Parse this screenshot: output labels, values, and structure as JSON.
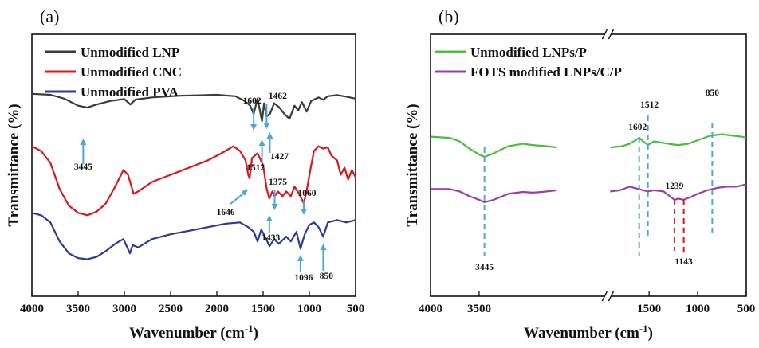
{
  "chart_data": [
    {
      "type": "line",
      "panel_label": "(a)",
      "xlabel": "Wavenumber (cm-1)",
      "ylabel": "Transmittance (%)",
      "xlim": [
        4000,
        500
      ],
      "x_reversed": true,
      "xticks": [
        4000,
        3500,
        3000,
        2500,
        2000,
        1500,
        1000,
        500
      ],
      "y_ticks_shown": false,
      "legend_position": "top-left",
      "series": [
        {
          "name": "Unmodified LNP",
          "color": "#3b3b3b",
          "offset": 0.8,
          "points": [
            [
              4000,
              0
            ],
            [
              3800,
              -0.004
            ],
            [
              3650,
              -0.02
            ],
            [
              3500,
              -0.05
            ],
            [
              3400,
              -0.058
            ],
            [
              3300,
              -0.045
            ],
            [
              3150,
              -0.03
            ],
            [
              3000,
              -0.022
            ],
            [
              2935,
              -0.045
            ],
            [
              2880,
              -0.024
            ],
            [
              2700,
              -0.015
            ],
            [
              2400,
              -0.008
            ],
            [
              2000,
              -0.004
            ],
            [
              1800,
              -0.01
            ],
            [
              1700,
              -0.03
            ],
            [
              1640,
              -0.05
            ],
            [
              1602,
              -0.085
            ],
            [
              1560,
              -0.02
            ],
            [
              1512,
              -0.115
            ],
            [
              1490,
              -0.04
            ],
            [
              1462,
              -0.095
            ],
            [
              1427,
              -0.085
            ],
            [
              1380,
              -0.04
            ],
            [
              1330,
              -0.055
            ],
            [
              1270,
              -0.085
            ],
            [
              1215,
              -0.105
            ],
            [
              1160,
              -0.05
            ],
            [
              1120,
              -0.07
            ],
            [
              1080,
              -0.035
            ],
            [
              1030,
              -0.075
            ],
            [
              980,
              -0.03
            ],
            [
              900,
              -0.015
            ],
            [
              850,
              -0.025
            ],
            [
              800,
              -0.01
            ],
            [
              700,
              -0.005
            ],
            [
              600,
              -0.012
            ],
            [
              500,
              -0.02
            ]
          ]
        },
        {
          "name": "Unmodified CNC",
          "color": "#d7191c",
          "offset": 0.58,
          "points": [
            [
              4000,
              0
            ],
            [
              3900,
              -0.02
            ],
            [
              3800,
              -0.07
            ],
            [
              3700,
              -0.18
            ],
            [
              3600,
              -0.25
            ],
            [
              3500,
              -0.28
            ],
            [
              3400,
              -0.29
            ],
            [
              3300,
              -0.275
            ],
            [
              3200,
              -0.24
            ],
            [
              3100,
              -0.17
            ],
            [
              3010,
              -0.1
            ],
            [
              2960,
              -0.12
            ],
            [
              2900,
              -0.2
            ],
            [
              2850,
              -0.19
            ],
            [
              2700,
              -0.15
            ],
            [
              2500,
              -0.12
            ],
            [
              2300,
              -0.09
            ],
            [
              2100,
              -0.06
            ],
            [
              1950,
              -0.03
            ],
            [
              1820,
              0.0
            ],
            [
              1750,
              -0.02
            ],
            [
              1690,
              -0.06
            ],
            [
              1660,
              -0.12
            ],
            [
              1646,
              -0.135
            ],
            [
              1620,
              -0.05
            ],
            [
              1560,
              -0.03
            ],
            [
              1500,
              -0.08
            ],
            [
              1460,
              -0.18
            ],
            [
              1433,
              -0.22
            ],
            [
              1400,
              -0.19
            ],
            [
              1375,
              -0.21
            ],
            [
              1340,
              -0.19
            ],
            [
              1290,
              -0.21
            ],
            [
              1250,
              -0.19
            ],
            [
              1200,
              -0.21
            ],
            [
              1160,
              -0.17
            ],
            [
              1110,
              -0.2
            ],
            [
              1060,
              -0.24
            ],
            [
              1030,
              -0.19
            ],
            [
              990,
              -0.1
            ],
            [
              950,
              -0.02
            ],
            [
              900,
              0.0
            ],
            [
              850,
              -0.01
            ],
            [
              800,
              -0.005
            ],
            [
              760,
              -0.04
            ],
            [
              700,
              -0.06
            ],
            [
              660,
              -0.12
            ],
            [
              620,
              -0.09
            ],
            [
              580,
              -0.14
            ],
            [
              540,
              -0.1
            ],
            [
              500,
              -0.13
            ]
          ]
        },
        {
          "name": "Unmodified PVA",
          "color": "#2b3a9b",
          "offset": 0.3,
          "points": [
            [
              4000,
              0
            ],
            [
              3900,
              -0.01
            ],
            [
              3800,
              -0.04
            ],
            [
              3700,
              -0.12
            ],
            [
              3600,
              -0.17
            ],
            [
              3500,
              -0.19
            ],
            [
              3400,
              -0.195
            ],
            [
              3300,
              -0.185
            ],
            [
              3200,
              -0.16
            ],
            [
              3100,
              -0.13
            ],
            [
              3010,
              -0.11
            ],
            [
              2940,
              -0.17
            ],
            [
              2910,
              -0.135
            ],
            [
              2850,
              -0.145
            ],
            [
              2700,
              -0.11
            ],
            [
              2500,
              -0.09
            ],
            [
              2300,
              -0.075
            ],
            [
              2100,
              -0.06
            ],
            [
              1900,
              -0.045
            ],
            [
              1750,
              -0.04
            ],
            [
              1660,
              -0.06
            ],
            [
              1600,
              -0.08
            ],
            [
              1560,
              -0.12
            ],
            [
              1520,
              -0.07
            ],
            [
              1480,
              -0.1
            ],
            [
              1430,
              -0.14
            ],
            [
              1380,
              -0.11
            ],
            [
              1330,
              -0.13
            ],
            [
              1250,
              -0.1
            ],
            [
              1200,
              -0.12
            ],
            [
              1140,
              -0.08
            ],
            [
              1096,
              -0.15
            ],
            [
              1050,
              -0.09
            ],
            [
              1000,
              -0.05
            ],
            [
              950,
              -0.04
            ],
            [
              900,
              -0.06
            ],
            [
              850,
              -0.1
            ],
            [
              800,
              -0.04
            ],
            [
              700,
              -0.03
            ],
            [
              600,
              -0.04
            ],
            [
              500,
              -0.03
            ]
          ]
        }
      ],
      "annotations": [
        {
          "label": "3445",
          "x": 3445,
          "arrow": "up"
        },
        {
          "label": "1602",
          "x": 1602,
          "arrow": "down"
        },
        {
          "label": "1462",
          "x": 1462,
          "arrow": "down"
        },
        {
          "label": "1427",
          "x": 1427,
          "arrow": "up"
        },
        {
          "label": "1512",
          "x": 1512,
          "arrow": "up"
        },
        {
          "label": "1646",
          "x": 1646,
          "arrow": "diag"
        },
        {
          "label": "1375",
          "x": 1375,
          "arrow": "down"
        },
        {
          "label": "1060",
          "x": 1060,
          "arrow": "down"
        },
        {
          "label": "1433",
          "x": 1433,
          "arrow": "up"
        },
        {
          "label": "1096",
          "x": 1096,
          "arrow": "up"
        },
        {
          "label": "850",
          "x": 850,
          "arrow": "up"
        }
      ]
    },
    {
      "type": "line",
      "panel_label": "(b)",
      "xlabel": "Wavenumber (cm-1)",
      "ylabel": "Transmittance (%)",
      "xlim": [
        4000,
        500
      ],
      "x_reversed": true,
      "axis_break": [
        2200,
        1900
      ],
      "xticks": [
        4000,
        3500,
        1500,
        1000,
        500
      ],
      "y_ticks_shown": false,
      "legend_position": "top-left",
      "series": [
        {
          "name": "Unmodified LNPs/P",
          "color": "#4cbb3f",
          "offset": 0.62,
          "points": [
            [
              4000,
              0
            ],
            [
              3800,
              -0.005
            ],
            [
              3700,
              -0.02
            ],
            [
              3600,
              -0.05
            ],
            [
              3500,
              -0.075
            ],
            [
              3445,
              -0.085
            ],
            [
              3350,
              -0.07
            ],
            [
              3200,
              -0.04
            ],
            [
              3050,
              -0.03
            ],
            [
              2950,
              -0.035
            ],
            [
              2800,
              -0.04
            ],
            [
              2700,
              -0.045
            ],
            [
              1900,
              -0.045
            ],
            [
              1780,
              -0.04
            ],
            [
              1700,
              -0.03
            ],
            [
              1640,
              -0.015
            ],
            [
              1602,
              -0.005
            ],
            [
              1560,
              -0.02
            ],
            [
              1512,
              -0.035
            ],
            [
              1450,
              -0.02
            ],
            [
              1300,
              -0.03
            ],
            [
              1200,
              -0.035
            ],
            [
              1100,
              -0.03
            ],
            [
              1000,
              -0.015
            ],
            [
              900,
              0.0
            ],
            [
              850,
              0.005
            ],
            [
              750,
              0.01
            ],
            [
              650,
              0.005
            ],
            [
              550,
              0.0
            ],
            [
              500,
              -0.005
            ]
          ]
        },
        {
          "name": "FOTS modified LNPs/C/P",
          "color": "#9b3fa8",
          "offset": 0.4,
          "points": [
            [
              4000,
              0
            ],
            [
              3800,
              0.0
            ],
            [
              3700,
              -0.01
            ],
            [
              3600,
              -0.03
            ],
            [
              3500,
              -0.045
            ],
            [
              3445,
              -0.055
            ],
            [
              3350,
              -0.045
            ],
            [
              3200,
              -0.02
            ],
            [
              3050,
              -0.012
            ],
            [
              2950,
              -0.015
            ],
            [
              2850,
              -0.012
            ],
            [
              2700,
              -0.005
            ],
            [
              1900,
              -0.01
            ],
            [
              1800,
              -0.005
            ],
            [
              1700,
              0.01
            ],
            [
              1650,
              0.005
            ],
            [
              1602,
              0.0
            ],
            [
              1560,
              -0.005
            ],
            [
              1512,
              -0.01
            ],
            [
              1450,
              -0.005
            ],
            [
              1350,
              -0.01
            ],
            [
              1239,
              -0.045
            ],
            [
              1200,
              -0.04
            ],
            [
              1143,
              -0.045
            ],
            [
              1080,
              -0.035
            ],
            [
              1000,
              -0.02
            ],
            [
              900,
              -0.005
            ],
            [
              800,
              0.005
            ],
            [
              700,
              0.01
            ],
            [
              600,
              0.01
            ],
            [
              500,
              0.02
            ]
          ]
        }
      ],
      "annotations": [
        {
          "label": "3445",
          "x": 3445,
          "line": "dashed-blue"
        },
        {
          "label": "1602",
          "x": 1602,
          "line": "dashed-blue"
        },
        {
          "label": "1512",
          "x": 1512,
          "line": "dashed-blue"
        },
        {
          "label": "850",
          "x": 850,
          "line": "dashed-blue"
        },
        {
          "label": "1239",
          "x": 1239,
          "line": "dashed-red"
        },
        {
          "label": "1143",
          "x": 1143,
          "line": "dashed-red"
        }
      ]
    }
  ]
}
